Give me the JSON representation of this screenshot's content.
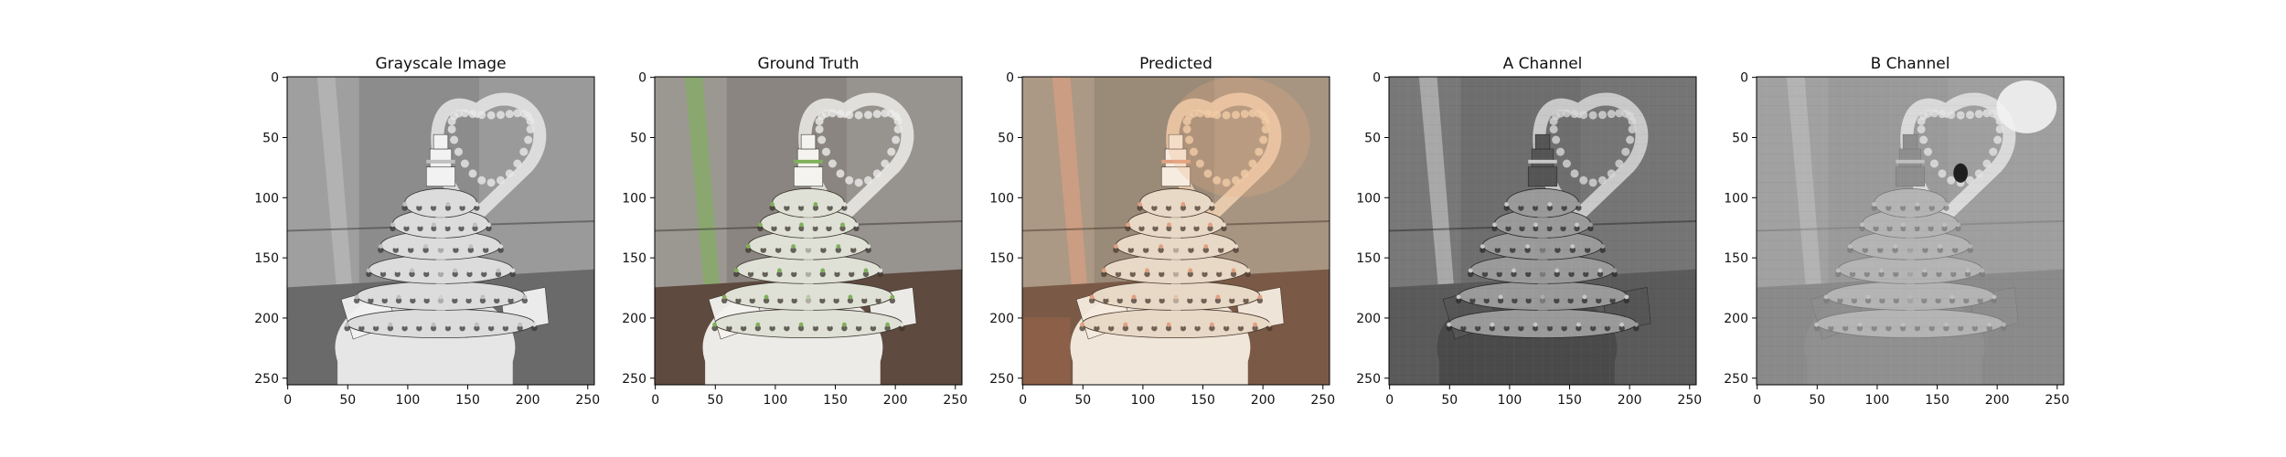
{
  "figure": {
    "panels": [
      {
        "title": "Grayscale Image",
        "kind": "gray"
      },
      {
        "title": "Ground Truth",
        "kind": "truth"
      },
      {
        "title": "Predicted",
        "kind": "pred"
      },
      {
        "title": "A Channel",
        "kind": "achan"
      },
      {
        "title": "B Channel",
        "kind": "bchan"
      }
    ],
    "x_ticks": [
      "0",
      "50",
      "100",
      "150",
      "200",
      "250"
    ],
    "y_ticks": [
      "0",
      "50",
      "100",
      "150",
      "200",
      "250"
    ]
  }
}
